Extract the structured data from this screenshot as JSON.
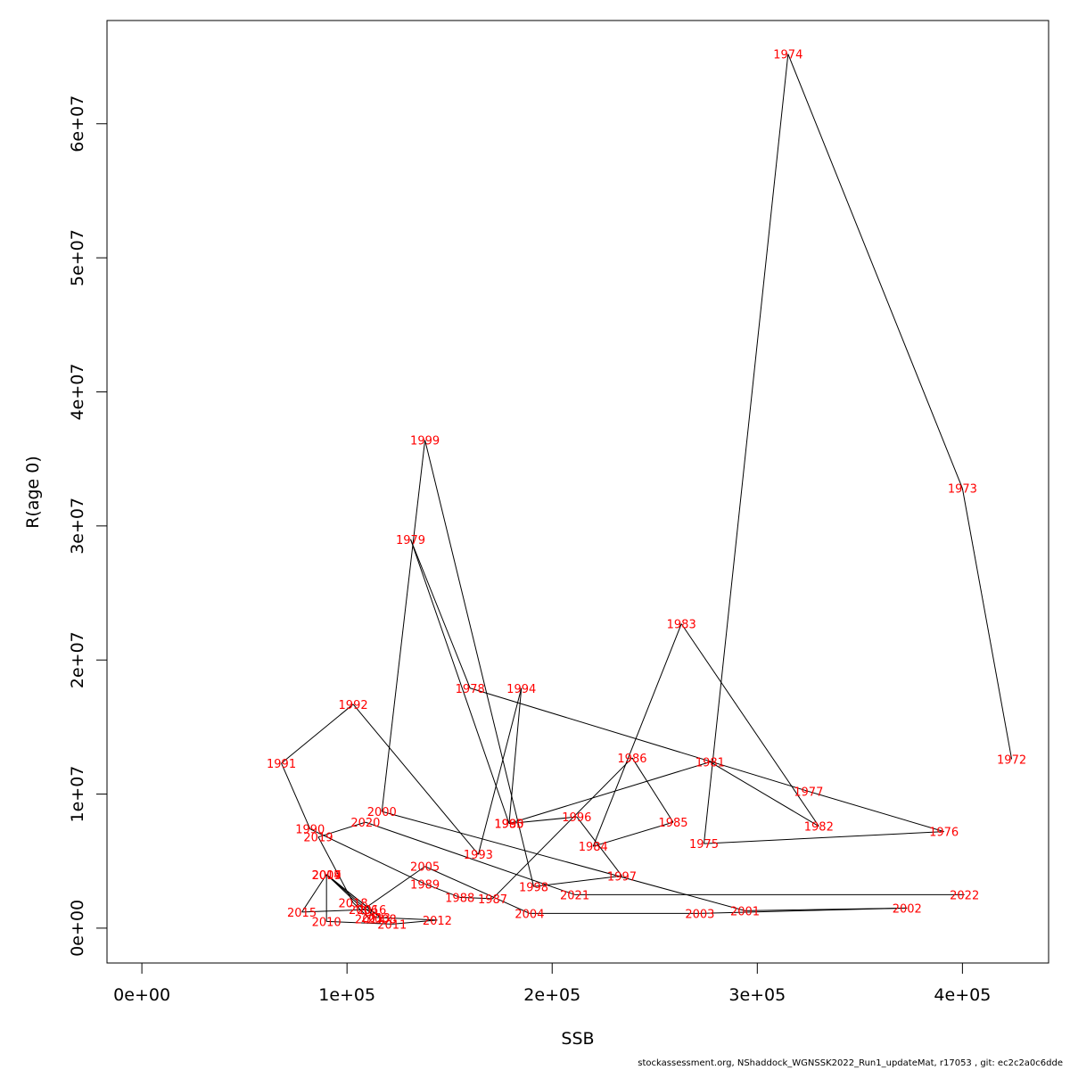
{
  "chart_data": {
    "type": "line",
    "xlabel": "SSB",
    "ylabel": "R(age 0)",
    "xlim": [
      -17000,
      442000
    ],
    "ylim": [
      -2600000,
      67700000
    ],
    "xticks": [
      {
        "value": 0,
        "label": "0e+00"
      },
      {
        "value": 100000,
        "label": "1e+05"
      },
      {
        "value": 200000,
        "label": "2e+05"
      },
      {
        "value": 300000,
        "label": "3e+05"
      },
      {
        "value": 400000,
        "label": "4e+05"
      }
    ],
    "yticks": [
      {
        "value": 0,
        "label": "0e+00"
      },
      {
        "value": 10000000,
        "label": "1e+07"
      },
      {
        "value": 20000000,
        "label": "2e+07"
      },
      {
        "value": 30000000,
        "label": "3e+07"
      },
      {
        "value": 40000000,
        "label": "4e+07"
      },
      {
        "value": 50000000,
        "label": "5e+07"
      },
      {
        "value": 60000000,
        "label": "6e+07"
      }
    ],
    "line_color": "#000000",
    "label_color": "#ff0000",
    "points": [
      {
        "year": "1972",
        "x": 424000,
        "y": 12600000
      },
      {
        "year": "1973",
        "x": 400000,
        "y": 32800000
      },
      {
        "year": "1974",
        "x": 315000,
        "y": 65200000
      },
      {
        "year": "1975",
        "x": 274000,
        "y": 6300000
      },
      {
        "year": "1976",
        "x": 391000,
        "y": 7200000
      },
      {
        "year": "1977",
        "x": 325000,
        "y": 10200000
      },
      {
        "year": "1978",
        "x": 160000,
        "y": 17900000
      },
      {
        "year": "1979",
        "x": 131000,
        "y": 29000000
      },
      {
        "year": "1980",
        "x": 179000,
        "y": 7800000
      },
      {
        "year": "1981",
        "x": 277000,
        "y": 12400000
      },
      {
        "year": "1982",
        "x": 330000,
        "y": 7600000
      },
      {
        "year": "1983",
        "x": 263000,
        "y": 22700000
      },
      {
        "year": "1984",
        "x": 220000,
        "y": 6100000
      },
      {
        "year": "1985",
        "x": 259000,
        "y": 7900000
      },
      {
        "year": "1986",
        "x": 239000,
        "y": 12700000
      },
      {
        "year": "1987",
        "x": 171000,
        "y": 2200000
      },
      {
        "year": "1988",
        "x": 155000,
        "y": 2300000
      },
      {
        "year": "1989",
        "x": 138000,
        "y": 3300000
      },
      {
        "year": "1990",
        "x": 82000,
        "y": 7400000
      },
      {
        "year": "1991",
        "x": 68000,
        "y": 12300000
      },
      {
        "year": "1992",
        "x": 103000,
        "y": 16700000
      },
      {
        "year": "1993",
        "x": 164000,
        "y": 5500000
      },
      {
        "year": "1994",
        "x": 185000,
        "y": 17900000
      },
      {
        "year": "1995",
        "x": 179000,
        "y": 7800000
      },
      {
        "year": "1996",
        "x": 212000,
        "y": 8300000
      },
      {
        "year": "1997",
        "x": 234000,
        "y": 3900000
      },
      {
        "year": "1998",
        "x": 191000,
        "y": 3100000
      },
      {
        "year": "1999",
        "x": 138000,
        "y": 36400000
      },
      {
        "year": "2000",
        "x": 117000,
        "y": 8700000
      },
      {
        "year": "2001",
        "x": 294000,
        "y": 1300000
      },
      {
        "year": "2002",
        "x": 373000,
        "y": 1500000
      },
      {
        "year": "2003",
        "x": 272000,
        "y": 1100000
      },
      {
        "year": "2004",
        "x": 189000,
        "y": 1100000
      },
      {
        "year": "2005",
        "x": 138000,
        "y": 4600000
      },
      {
        "year": "2006",
        "x": 108000,
        "y": 1400000
      },
      {
        "year": "2007",
        "x": 90000,
        "y": 4000000
      },
      {
        "year": "2008",
        "x": 117000,
        "y": 700000
      },
      {
        "year": "2009",
        "x": 90000,
        "y": 4000000
      },
      {
        "year": "2010",
        "x": 90000,
        "y": 500000
      },
      {
        "year": "2011",
        "x": 122000,
        "y": 300000
      },
      {
        "year": "2012",
        "x": 144000,
        "y": 600000
      },
      {
        "year": "2013",
        "x": 114000,
        "y": 800000
      },
      {
        "year": "2014",
        "x": 90000,
        "y": 4000000
      },
      {
        "year": "2015",
        "x": 78000,
        "y": 1200000
      },
      {
        "year": "2016",
        "x": 112000,
        "y": 1400000
      },
      {
        "year": "2017",
        "x": 111000,
        "y": 700000
      },
      {
        "year": "2018",
        "x": 103000,
        "y": 1900000
      },
      {
        "year": "2019",
        "x": 86000,
        "y": 6800000
      },
      {
        "year": "2020",
        "x": 109000,
        "y": 7900000
      },
      {
        "year": "2021",
        "x": 211000,
        "y": 2500000
      },
      {
        "year": "2022",
        "x": 401000,
        "y": 2500000
      }
    ]
  },
  "footer": {
    "text": "stockassessment.org, NShaddock_WGNSSK2022_Run1_updateMat, r17053 , git: ec2c2a0c6dde"
  }
}
